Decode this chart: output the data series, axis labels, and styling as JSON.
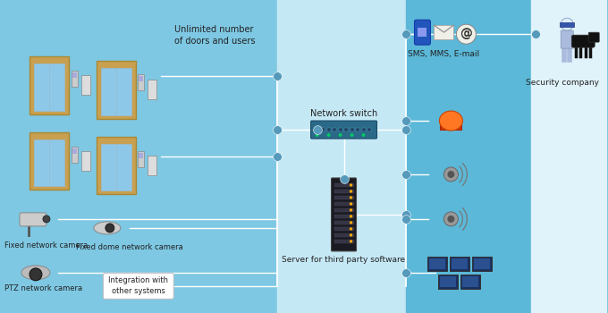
{
  "bg_left": "#7ec8e3",
  "bg_center_light": "#c5e8f5",
  "bg_center_dark": "#5bb8d8",
  "bg_far_right": "#e0f2fa",
  "text_color": "#222222",
  "line_color": "#ffffff",
  "dot_color": "#5599bb",
  "door_frame_color": "#c8a050",
  "door_glass": "#8ec8e8",
  "labels": {
    "unlimited": "Unlimited number\nof doors and users",
    "fixed_cam": "Fixed network camera",
    "dome_cam": "Fixed dome network camera",
    "ptz_cam": "PTZ network camera",
    "integration": "Integration with\nother systems",
    "network_switch": "Network switch",
    "server": "Server for third party software",
    "sms": "SMS, MMS, E-mail",
    "security": "Security company"
  },
  "lw": 1.0,
  "dot_r": 3.5
}
